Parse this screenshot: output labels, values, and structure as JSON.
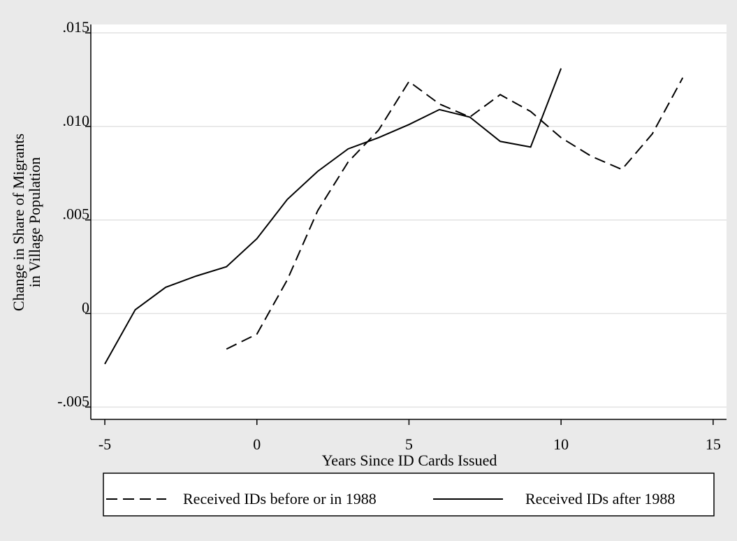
{
  "chart_data": {
    "type": "line",
    "x_label": "Years Since ID Cards Issued",
    "y_label": [
      "Change in Share of Migrants",
      "in Village Population"
    ],
    "xlim": [
      -5.46,
      15.44
    ],
    "xticks": [
      -5,
      0,
      5,
      10,
      15
    ],
    "ylim": [
      -0.00566,
      0.01545
    ],
    "yticks": [
      {
        "value": -0.005,
        "label": "-.005"
      },
      0,
      {
        "value": 0.005,
        "label": ".005"
      },
      {
        "value": 0.01,
        "label": ".010"
      },
      {
        "value": 0.015,
        "label": ".015"
      }
    ],
    "grid": true,
    "legend": "bottom",
    "series": [
      {
        "name": "Received IDs before or in 1988",
        "color": "#000000",
        "dashed": true,
        "x": [
          -1,
          0,
          1,
          2,
          3,
          4,
          5,
          6,
          7,
          8,
          9,
          10,
          11,
          12,
          13,
          14
        ],
        "values": [
          -0.0019,
          -0.0011,
          0.0018,
          0.0055,
          0.0081,
          0.0098,
          0.0124,
          0.0112,
          0.0105,
          0.0117,
          0.0108,
          0.0094,
          0.0084,
          0.0077,
          0.0096,
          0.0126
        ]
      },
      {
        "name": "Received IDs after 1988",
        "color": "#000000",
        "dashed": false,
        "x": [
          -5,
          -4,
          -3,
          -2,
          -1,
          0,
          1,
          2,
          3,
          4,
          5,
          6,
          7,
          8,
          9,
          10
        ],
        "values": [
          -0.0027,
          0.0002,
          0.0014,
          0.002,
          0.0025,
          0.004,
          0.0061,
          0.0076,
          0.0088,
          0.0094,
          0.0101,
          0.0109,
          0.0105,
          0.0092,
          0.0089,
          0.0131
        ]
      }
    ]
  }
}
